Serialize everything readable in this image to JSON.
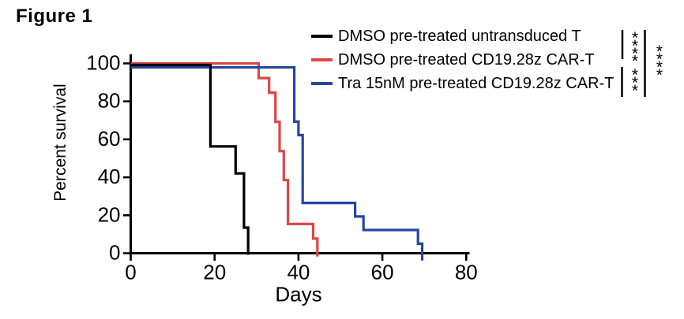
{
  "figure": {
    "title": "Figure 1"
  },
  "chart_data": {
    "type": "line",
    "subtype": "kaplan-meier-survival-step",
    "title": "",
    "xlabel": "Days",
    "ylabel": "Percent survival",
    "xlim": [
      0,
      80
    ],
    "ylim": [
      0,
      100
    ],
    "x_ticks": [
      0,
      20,
      40,
      60,
      80
    ],
    "y_ticks": [
      100,
      80,
      60,
      40,
      20,
      0
    ],
    "grid": false,
    "legend_position": "top-right",
    "series": [
      {
        "name": "DMSO pre-treated untransduced T",
        "color": "#000000",
        "points": [
          [
            0,
            100
          ],
          [
            19,
            100
          ],
          [
            19,
            57.1
          ],
          [
            25,
            57.1
          ],
          [
            25,
            42.9
          ],
          [
            27,
            42.9
          ],
          [
            27,
            14.3
          ],
          [
            28,
            14.3
          ],
          [
            28,
            0
          ]
        ]
      },
      {
        "name": "DMSO pre-treated CD19.28z CAR-T",
        "color": "#de4746",
        "points": [
          [
            0,
            100
          ],
          [
            30.5,
            100
          ],
          [
            30.5,
            92.3
          ],
          [
            33,
            92.3
          ],
          [
            33,
            84.6
          ],
          [
            34.5,
            84.6
          ],
          [
            34.5,
            69.2
          ],
          [
            35.5,
            69.2
          ],
          [
            35.5,
            53.8
          ],
          [
            36.5,
            53.8
          ],
          [
            36.5,
            38.5
          ],
          [
            37.5,
            38.5
          ],
          [
            37.5,
            15.4
          ],
          [
            43.5,
            15.4
          ],
          [
            43.5,
            7.7
          ],
          [
            44.5,
            7.7
          ],
          [
            44.5,
            0
          ]
        ]
      },
      {
        "name": "Tra 15nM pre-treated CD19.28z CAR-T",
        "color": "#27479c",
        "points": [
          [
            0,
            100
          ],
          [
            39,
            100
          ],
          [
            39,
            71.4
          ],
          [
            40,
            71.4
          ],
          [
            40,
            64.3
          ],
          [
            41,
            64.3
          ],
          [
            41,
            28.6
          ],
          [
            53.5,
            28.6
          ],
          [
            53.5,
            21.4
          ],
          [
            55.5,
            21.4
          ],
          [
            55.5,
            14.3
          ],
          [
            68.5,
            14.3
          ],
          [
            68.5,
            7.1
          ],
          [
            69.5,
            7.1
          ],
          [
            69.5,
            0
          ]
        ]
      }
    ]
  },
  "stats": {
    "comparisons": [
      {
        "between": [
          0,
          1
        ],
        "stars": "****"
      },
      {
        "between": [
          1,
          2
        ],
        "stars": "***"
      },
      {
        "between": [
          0,
          2
        ],
        "stars": "****"
      }
    ]
  }
}
